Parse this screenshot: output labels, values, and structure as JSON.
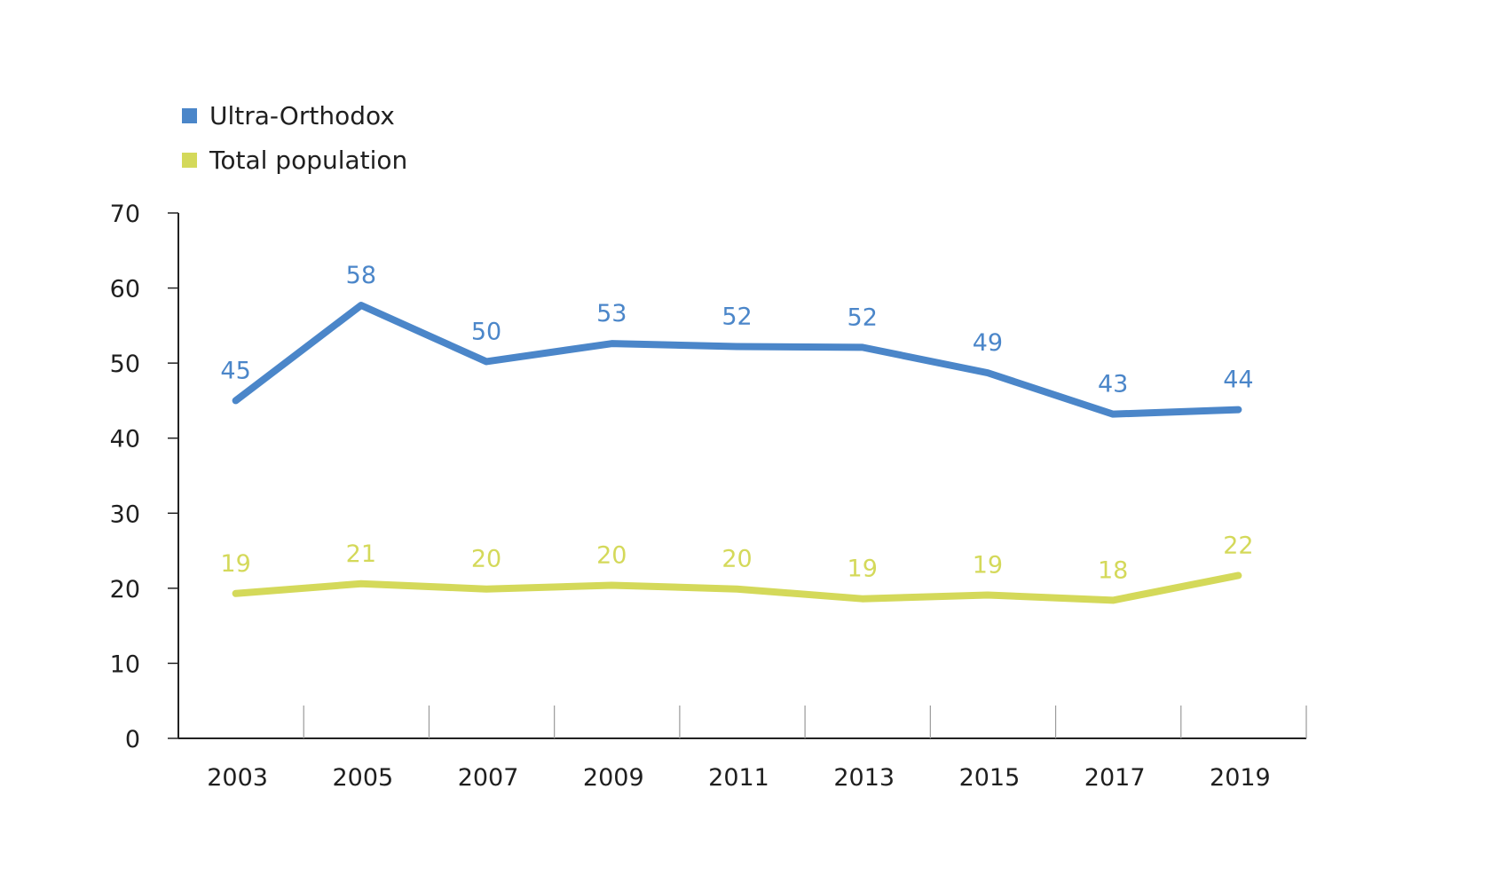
{
  "chart_data": {
    "type": "line",
    "categories": [
      "2003",
      "2005",
      "2007",
      "2009",
      "2011",
      "2013",
      "2015",
      "2017",
      "2019"
    ],
    "series": [
      {
        "name": "Ultra-Orthodox",
        "color": "#4b86c9",
        "values": [
          45,
          57.7,
          50.2,
          52.6,
          52.2,
          52.1,
          48.7,
          43.2,
          43.8
        ],
        "labels": [
          "45",
          "58",
          "50",
          "53",
          "52",
          "52",
          "49",
          "43",
          "44"
        ]
      },
      {
        "name": "Total population",
        "color": "#d4d95a",
        "values": [
          19.3,
          20.6,
          19.9,
          20.4,
          19.9,
          18.6,
          19.1,
          18.4,
          21.7
        ],
        "labels": [
          "19",
          "21",
          "20",
          "20",
          "20",
          "19",
          "19",
          "18",
          "22"
        ]
      }
    ],
    "y_ticks": [
      "0",
      "10",
      "20",
      "30",
      "40",
      "50",
      "60",
      "70"
    ],
    "ylim": [
      0,
      70
    ],
    "title": "",
    "xlabel": "",
    "ylabel": "",
    "grid": false,
    "legend_position": "top-left",
    "axis_color": "#222222",
    "tick_color": "#9a9a9a",
    "text_color": "#1f1f1f"
  }
}
